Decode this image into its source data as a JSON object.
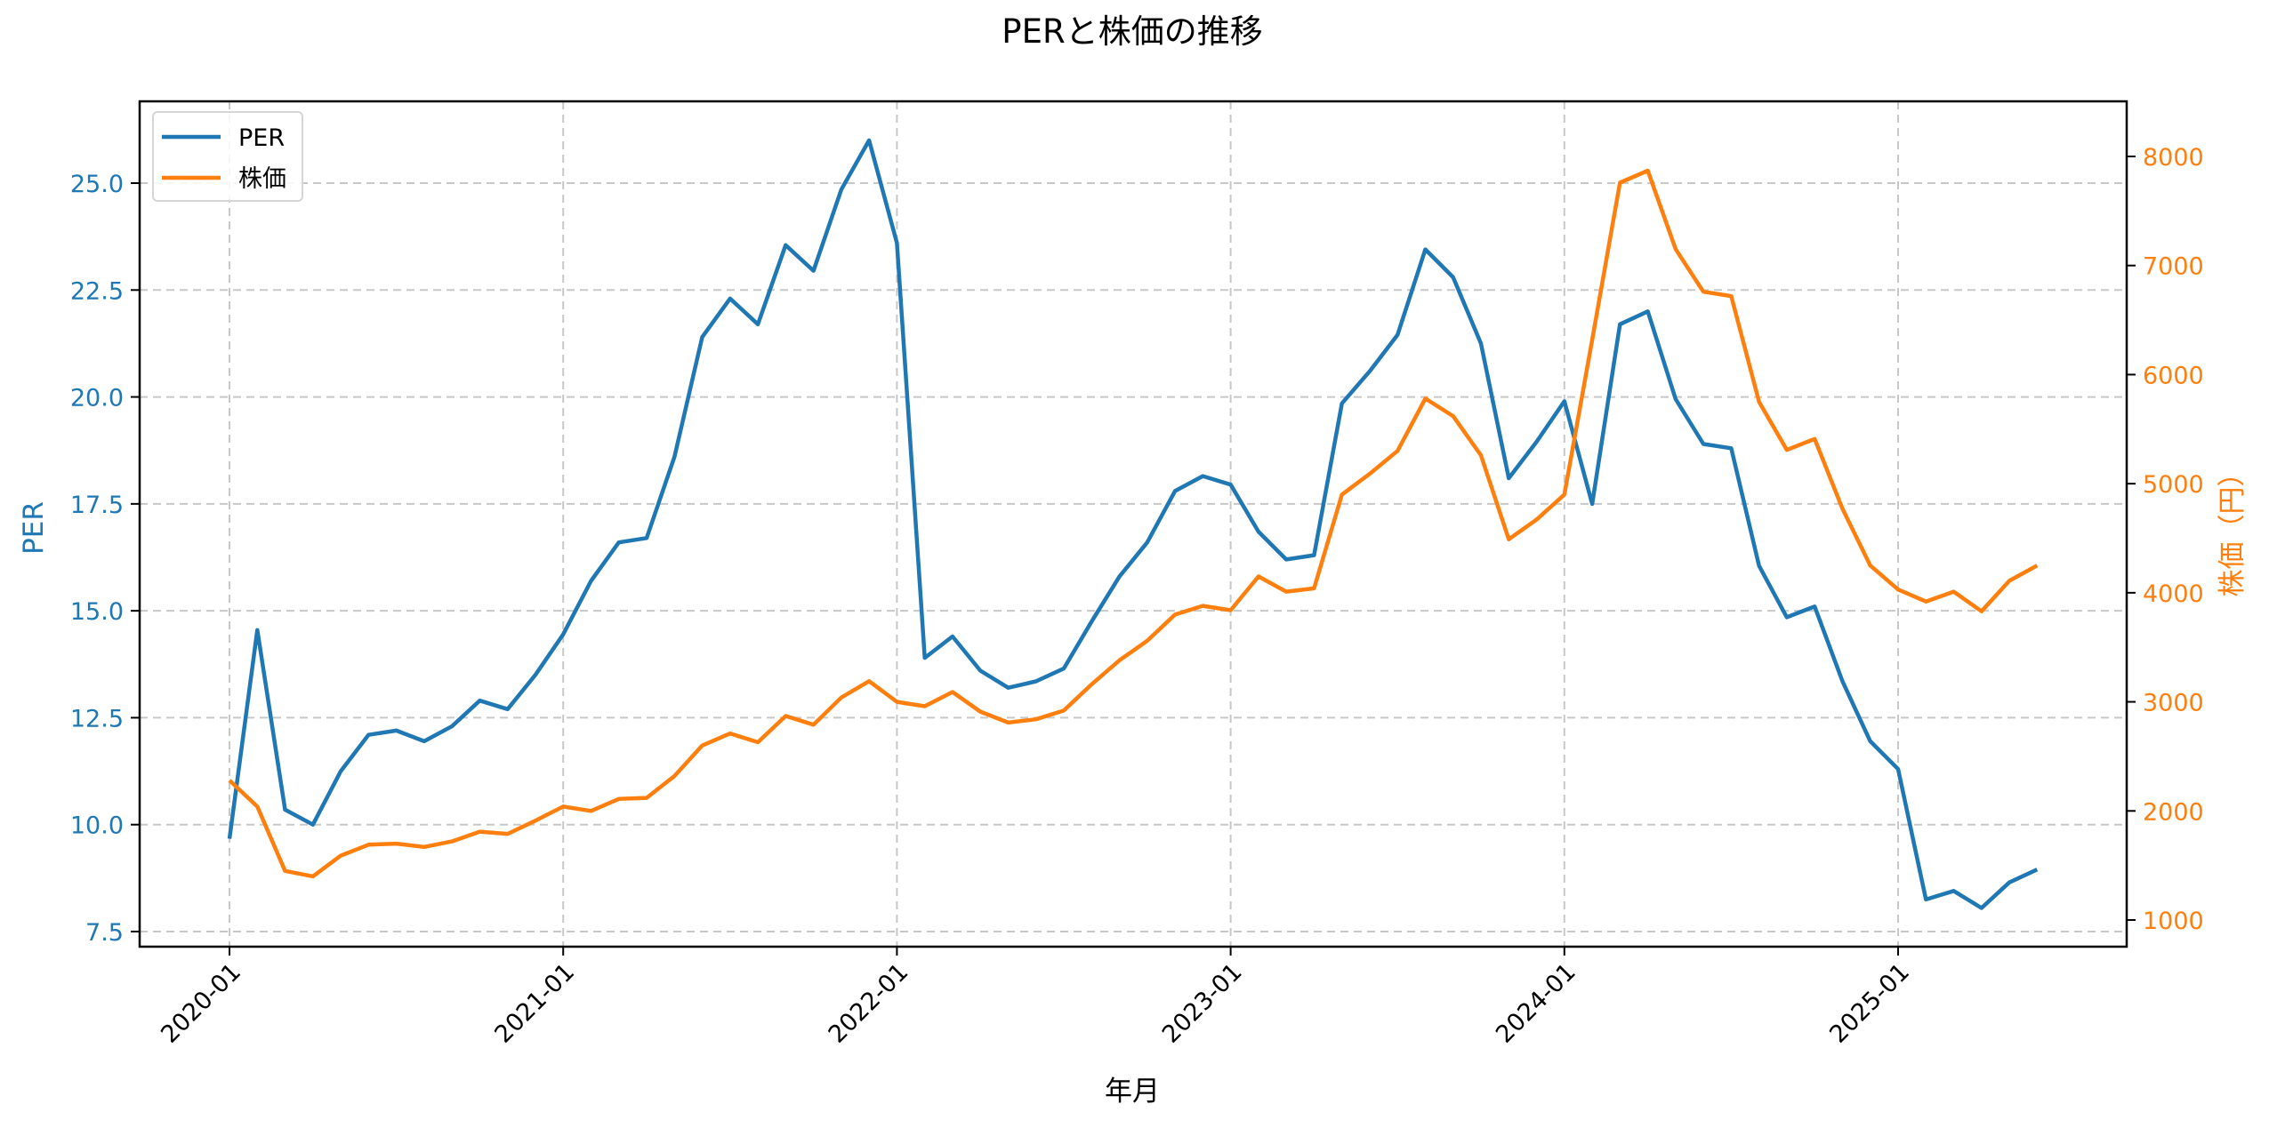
{
  "chart_data": {
    "type": "line",
    "title": "PERと株価の推移",
    "xlabel": "年月",
    "ylabel": "PER",
    "ylabel_right": "株価（円）",
    "x_tick_labels": [
      "2020-01",
      "2021-01",
      "2022-01",
      "2023-01",
      "2024-01",
      "2025-01"
    ],
    "y_ticks_left": [
      7.5,
      10.0,
      12.5,
      15.0,
      17.5,
      20.0,
      22.5,
      25.0
    ],
    "y_ticks_right": [
      1000,
      2000,
      3000,
      4000,
      5000,
      6000,
      7000,
      8000
    ],
    "ylim_left": [
      7.15,
      26.6
    ],
    "ylim_right": [
      875,
      8550
    ],
    "grid": true,
    "legend_position": "upper left",
    "x": [
      "2020-01",
      "2020-02",
      "2020-03",
      "2020-04",
      "2020-05",
      "2020-06",
      "2020-07",
      "2020-08",
      "2020-09",
      "2020-10",
      "2020-11",
      "2020-12",
      "2021-01",
      "2021-02",
      "2021-03",
      "2021-04",
      "2021-05",
      "2021-06",
      "2021-07",
      "2021-08",
      "2021-09",
      "2021-10",
      "2021-11",
      "2021-12",
      "2022-01",
      "2022-02",
      "2022-03",
      "2022-04",
      "2022-05",
      "2022-06",
      "2022-07",
      "2022-08",
      "2022-09",
      "2022-10",
      "2022-11",
      "2022-12",
      "2023-01",
      "2023-02",
      "2023-03",
      "2023-04",
      "2023-05",
      "2023-06",
      "2023-07",
      "2023-08",
      "2023-09",
      "2023-10",
      "2023-11",
      "2023-12",
      "2024-01",
      "2024-02",
      "2024-03",
      "2024-04",
      "2024-05",
      "2024-06",
      "2024-07",
      "2024-08",
      "2024-09",
      "2024-10",
      "2024-11",
      "2024-12",
      "2025-01",
      "2025-02",
      "2025-03",
      "2025-04",
      "2025-05",
      "2025-06"
    ],
    "series": [
      {
        "name": "PER",
        "axis": "left",
        "color": "#1f77b4",
        "values": [
          9.67,
          14.55,
          10.35,
          10.0,
          11.25,
          12.1,
          12.2,
          11.95,
          12.3,
          12.9,
          12.7,
          13.5,
          14.45,
          15.7,
          16.6,
          16.7,
          18.6,
          21.4,
          22.3,
          21.7,
          23.55,
          22.95,
          24.85,
          26.0,
          23.6,
          13.9,
          14.4,
          13.6,
          13.2,
          13.35,
          13.65,
          14.75,
          15.8,
          16.6,
          17.8,
          18.15,
          17.95,
          16.85,
          16.2,
          16.3,
          19.85,
          20.6,
          21.45,
          23.45,
          22.8,
          21.25,
          18.1,
          18.95,
          19.9,
          17.5,
          21.7,
          22.0,
          19.95,
          18.9,
          18.8,
          16.05,
          14.85,
          15.1,
          13.35,
          11.95,
          11.3,
          8.25,
          8.45,
          8.05,
          8.65,
          8.95
        ]
      },
      {
        "name": "株価",
        "axis": "right",
        "color": "#ff7f0e",
        "values": [
          2280,
          2040,
          1450,
          1400,
          1590,
          1690,
          1700,
          1670,
          1720,
          1810,
          1790,
          1910,
          2040,
          2000,
          2110,
          2120,
          2320,
          2600,
          2710,
          2630,
          2870,
          2790,
          3040,
          3190,
          3000,
          2960,
          3090,
          2910,
          2810,
          2840,
          2920,
          3160,
          3380,
          3560,
          3800,
          3880,
          3840,
          4150,
          4010,
          4040,
          4900,
          5090,
          5300,
          5780,
          5620,
          5260,
          4490,
          4670,
          4900,
          6320,
          7760,
          7870,
          7150,
          6760,
          6720,
          5750,
          5310,
          5410,
          4770,
          4250,
          4030,
          3920,
          4010,
          3830,
          4110,
          4250
        ]
      }
    ]
  },
  "legend": {
    "items": [
      {
        "label": "PER",
        "color": "#1f77b4"
      },
      {
        "label": "株価",
        "color": "#ff7f0e"
      }
    ]
  },
  "colors": {
    "per": "#1f77b4",
    "price": "#ff7f0e",
    "grid": "#c8c8c8",
    "axis": "#000000"
  }
}
